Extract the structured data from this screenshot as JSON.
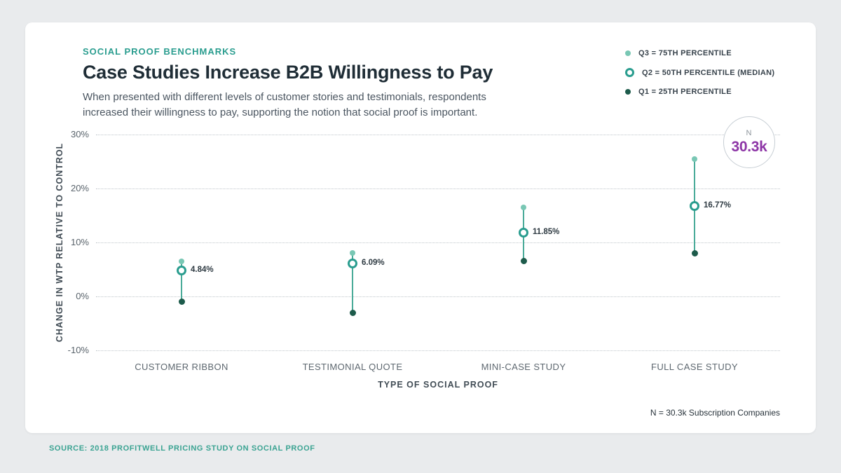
{
  "header": {
    "eyebrow": "SOCIAL PROOF BENCHMARKS",
    "title": "Case Studies Increase B2B Willingness to Pay",
    "subtitle_line1": "When presented with different levels of customer stories and testimonials, respondents",
    "subtitle_line2": "increased their willingness to pay, supporting the notion that social proof is important."
  },
  "legend": {
    "items": [
      {
        "label": "Q3 = 75TH PERCENTILE",
        "marker": "light-teal-dot"
      },
      {
        "label": "Q2 = 50TH PERCENTILE (MEDIAN)",
        "marker": "teal-ring"
      },
      {
        "label": "Q1 = 25TH PERCENTILE",
        "marker": "dark-green-dot"
      }
    ]
  },
  "badge": {
    "label": "N",
    "value": "30.3k"
  },
  "footer": {
    "sample_note": "N = 30.3k Subscription Companies",
    "source": "SOURCE: 2018 PROFITWELL PRICING STUDY ON SOCIAL PROOF"
  },
  "colors": {
    "background": "#E9EBED",
    "card": "#FFFFFF",
    "accent_teal": "#2A9D8F",
    "q3_dot": "#79C7B4",
    "q1_dot": "#1D5B4B",
    "range_line": "#4AAB99",
    "badge_value_purple": "#8D35A6",
    "title_text": "#1F2D36"
  },
  "chart_data": {
    "type": "scatter",
    "subtype": "quartile-range-dot-plot",
    "title": "Case Studies Increase B2B Willingness to Pay",
    "xlabel": "TYPE OF SOCIAL PROOF",
    "ylabel": "CHANGE IN WTP RELATIVE TO CONTROL",
    "ylim": [
      -10,
      30
    ],
    "yticks": [
      30,
      20,
      10,
      0,
      -10
    ],
    "ytick_suffix": "%",
    "grid": "dotted-horizontal",
    "legend_position": "top-right",
    "categories": [
      "CUSTOMER RIBBON",
      "TESTIMONIAL QUOTE",
      "MINI-CASE STUDY",
      "FULL CASE STUDY"
    ],
    "series": [
      {
        "name": "Q3 = 75TH PERCENTILE",
        "values": [
          6.5,
          8.0,
          16.5,
          25.5
        ]
      },
      {
        "name": "Q2 = 50TH PERCENTILE (MEDIAN)",
        "values": [
          4.84,
          6.09,
          11.85,
          16.77
        ]
      },
      {
        "name": "Q1 = 25TH PERCENTILE",
        "values": [
          -1.0,
          -3.0,
          6.5,
          8.0
        ]
      }
    ],
    "median_value_labels": [
      "4.84%",
      "6.09%",
      "11.85%",
      "16.77%"
    ],
    "sample_size": "30.3k"
  }
}
